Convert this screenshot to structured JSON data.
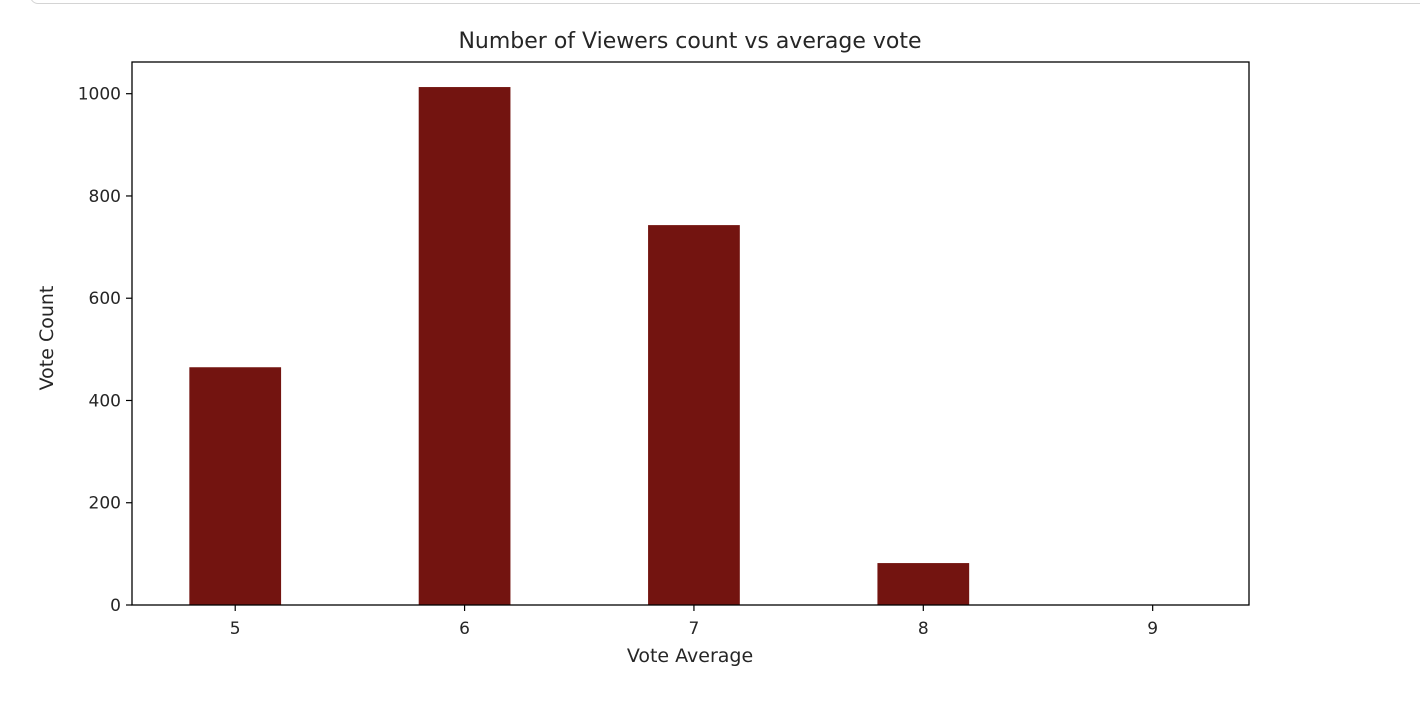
{
  "chart_data": {
    "type": "bar",
    "title": "Number of Viewers count vs  average vote",
    "xlabel": "Vote Average",
    "ylabel": "Vote Count",
    "categories": [
      "5",
      "6",
      "7",
      "8",
      "9"
    ],
    "x": [
      5,
      6,
      7,
      8,
      9
    ],
    "values": [
      465,
      1013,
      743,
      82,
      0
    ],
    "xlim": [
      4.55,
      9.42
    ],
    "ylim": [
      0,
      1062
    ],
    "xticks": [
      "5",
      "6",
      "7",
      "8",
      "9"
    ],
    "yticks": [
      "0",
      "200",
      "400",
      "600",
      "800",
      "1000"
    ],
    "bar_width": 0.4,
    "bar_color": "#731410",
    "grid": false,
    "legend": "none"
  }
}
